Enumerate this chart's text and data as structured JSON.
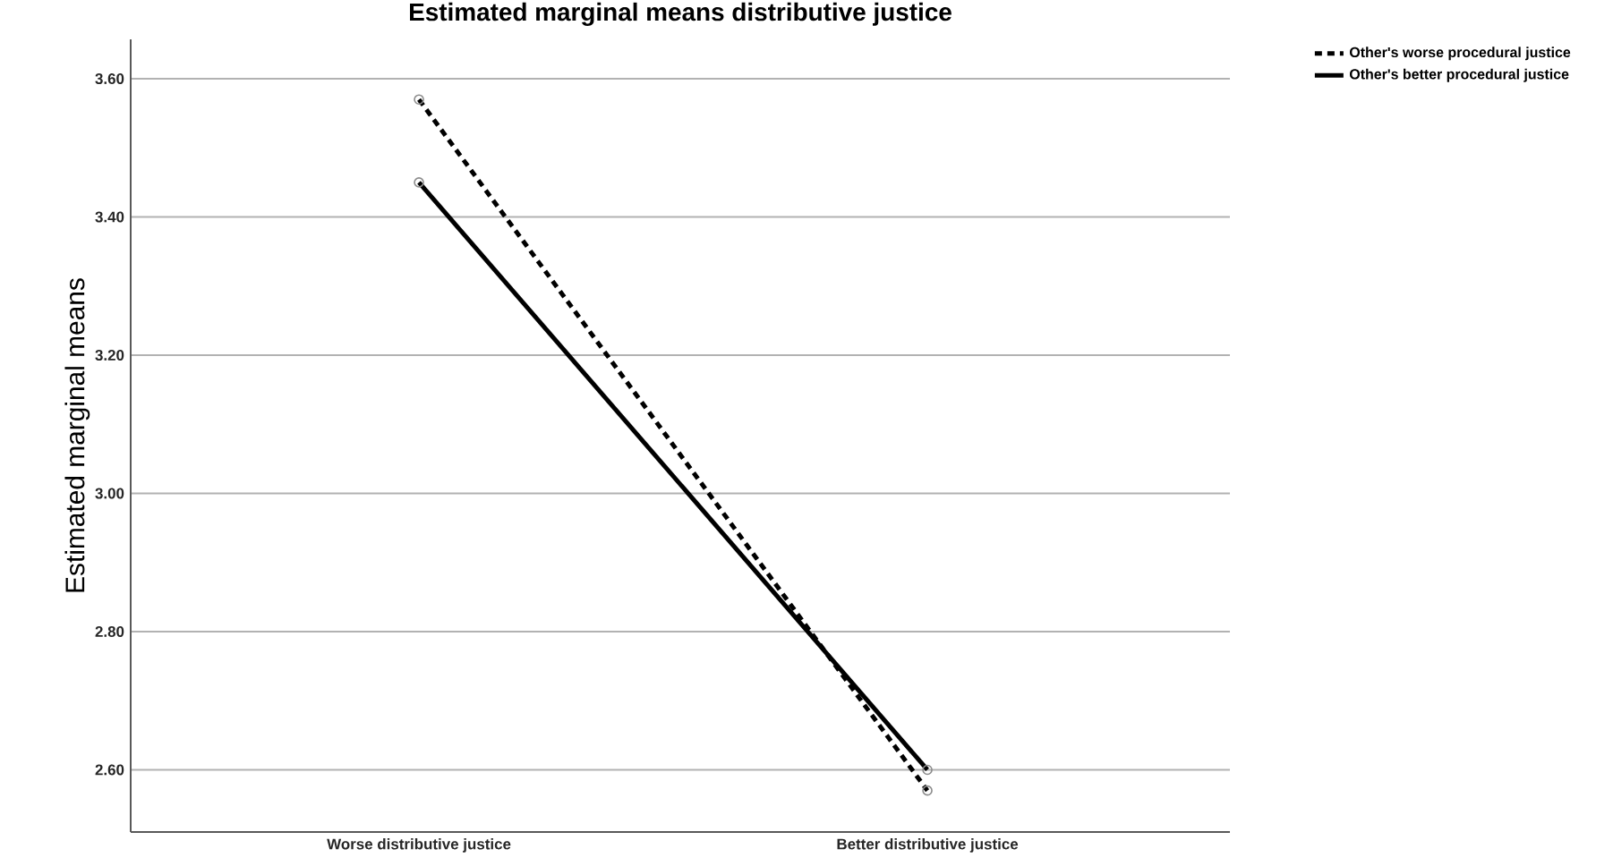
{
  "chart_data": {
    "type": "line",
    "title": "Estimated marginal means distributive justice",
    "ylabel": "Estimated marginal means",
    "categories": [
      "Worse distributive justice",
      "Better distributive justice"
    ],
    "series": [
      {
        "name": "Other's worse procedural justice",
        "color": "#000000",
        "line_style": "dashed",
        "values": [
          3.57,
          2.57
        ]
      },
      {
        "name": "Other's better procedural justice",
        "color": "#000000",
        "line_style": "solid",
        "values": [
          3.45,
          2.6
        ]
      }
    ],
    "ylim": [
      2.51,
      3.657
    ],
    "yticks": [
      {
        "value": 2.6,
        "label": "2.60"
      },
      {
        "value": 2.8,
        "label": "2.80"
      },
      {
        "value": 3.0,
        "label": "3.00"
      },
      {
        "value": 3.2,
        "label": "3.20"
      },
      {
        "value": 3.4,
        "label": "3.40"
      },
      {
        "value": 3.6,
        "label": "3.60"
      }
    ],
    "grid": "y",
    "legend": "top right",
    "marker": "circle"
  }
}
